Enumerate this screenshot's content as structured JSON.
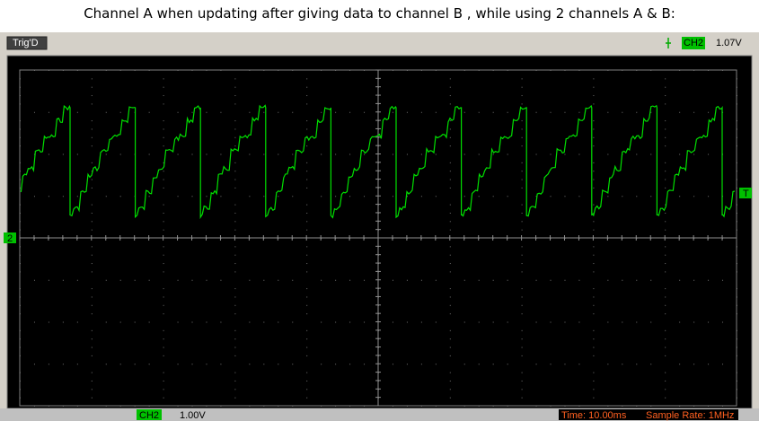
{
  "caption": "Channel A when updating  after giving data to channel B , while using 2 channels A & B:",
  "top_bar": {
    "status": "Trig'D",
    "channel": "CH2",
    "trigger_level": "1.07V"
  },
  "markers": {
    "channel": "2",
    "trigger": "T"
  },
  "bottom_bar": {
    "channel": "CH2",
    "volts_per_div": "1.00V",
    "time_base": "Time: 10.00ms",
    "sample_rate": "Sample Rate: 1MHz"
  }
}
